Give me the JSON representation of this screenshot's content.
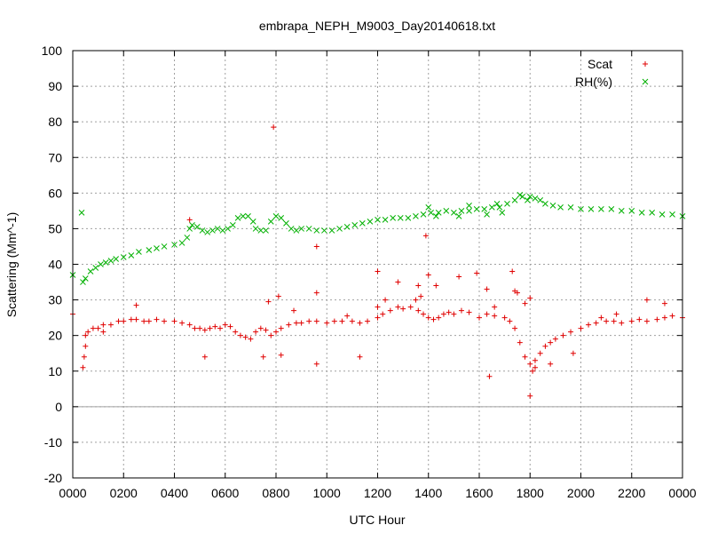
{
  "chart_data": {
    "type": "scatter",
    "title": "embrapa_NEPH_M9003_Day20140618.txt",
    "xlabel": "UTC Hour",
    "ylabel": "Scattering (Mm^-1)",
    "xlim": [
      0,
      24
    ],
    "ylim": [
      -20,
      100
    ],
    "grid": true,
    "zero_line": true,
    "legend_position": "top-right",
    "x_ticks": [
      {
        "value": 0,
        "label": "0000"
      },
      {
        "value": 2,
        "label": "0200"
      },
      {
        "value": 4,
        "label": "0400"
      },
      {
        "value": 6,
        "label": "0600"
      },
      {
        "value": 8,
        "label": "0800"
      },
      {
        "value": 10,
        "label": "1000"
      },
      {
        "value": 12,
        "label": "1200"
      },
      {
        "value": 14,
        "label": "1400"
      },
      {
        "value": 16,
        "label": "1600"
      },
      {
        "value": 18,
        "label": "1800"
      },
      {
        "value": 20,
        "label": "2000"
      },
      {
        "value": 22,
        "label": "2200"
      },
      {
        "value": 24,
        "label": "0000"
      }
    ],
    "y_ticks": [
      {
        "value": -20,
        "label": "-20"
      },
      {
        "value": -10,
        "label": "-10"
      },
      {
        "value": 0,
        "label": "0"
      },
      {
        "value": 10,
        "label": "10"
      },
      {
        "value": 20,
        "label": "20"
      },
      {
        "value": 30,
        "label": "30"
      },
      {
        "value": 40,
        "label": "40"
      },
      {
        "value": 50,
        "label": "50"
      },
      {
        "value": 60,
        "label": "60"
      },
      {
        "value": 70,
        "label": "70"
      },
      {
        "value": 80,
        "label": "80"
      },
      {
        "value": 90,
        "label": "90"
      },
      {
        "value": 100,
        "label": "100"
      }
    ],
    "series": [
      {
        "name": "Scat",
        "marker": "plus",
        "color": "#e00000",
        "points": [
          [
            0.0,
            26
          ],
          [
            0.4,
            11
          ],
          [
            0.45,
            14
          ],
          [
            0.5,
            20
          ],
          [
            0.6,
            21
          ],
          [
            0.8,
            22
          ],
          [
            1.0,
            22
          ],
          [
            1.2,
            23
          ],
          [
            1.5,
            23
          ],
          [
            1.8,
            24
          ],
          [
            2.0,
            24
          ],
          [
            2.3,
            24.5
          ],
          [
            2.5,
            24.5
          ],
          [
            2.8,
            24
          ],
          [
            3.0,
            24
          ],
          [
            3.3,
            24.5
          ],
          [
            3.6,
            24
          ],
          [
            4.0,
            24
          ],
          [
            4.3,
            23.5
          ],
          [
            4.6,
            23
          ],
          [
            4.8,
            22
          ],
          [
            5.0,
            22
          ],
          [
            5.2,
            21.5
          ],
          [
            5.4,
            22
          ],
          [
            5.6,
            22.5
          ],
          [
            5.8,
            22
          ],
          [
            6.0,
            23
          ],
          [
            6.2,
            22.5
          ],
          [
            6.4,
            21
          ],
          [
            6.6,
            20
          ],
          [
            6.8,
            19.5
          ],
          [
            7.0,
            19
          ],
          [
            7.2,
            21
          ],
          [
            7.4,
            22
          ],
          [
            7.6,
            21.5
          ],
          [
            7.8,
            20
          ],
          [
            8.0,
            21
          ],
          [
            8.2,
            22
          ],
          [
            8.5,
            23
          ],
          [
            8.8,
            23.5
          ],
          [
            9.0,
            23.5
          ],
          [
            9.3,
            24
          ],
          [
            9.6,
            24
          ],
          [
            10.0,
            23.5
          ],
          [
            10.3,
            24
          ],
          [
            10.6,
            24
          ],
          [
            11.0,
            24
          ],
          [
            11.3,
            23.5
          ],
          [
            11.6,
            24
          ],
          [
            12.0,
            25
          ],
          [
            12.2,
            26
          ],
          [
            12.5,
            27
          ],
          [
            12.8,
            28
          ],
          [
            13.0,
            27.5
          ],
          [
            13.3,
            28
          ],
          [
            13.6,
            27
          ],
          [
            13.8,
            26
          ],
          [
            14.0,
            25
          ],
          [
            14.2,
            24.5
          ],
          [
            14.4,
            25
          ],
          [
            14.6,
            26
          ],
          [
            14.8,
            26.5
          ],
          [
            15.0,
            26
          ],
          [
            15.3,
            27
          ],
          [
            15.6,
            26.5
          ],
          [
            16.0,
            25
          ],
          [
            16.3,
            26
          ],
          [
            16.6,
            25.5
          ],
          [
            17.0,
            25
          ],
          [
            17.2,
            24
          ],
          [
            17.4,
            22
          ],
          [
            17.6,
            18
          ],
          [
            17.8,
            14
          ],
          [
            18.0,
            12
          ],
          [
            18.1,
            10
          ],
          [
            18.2,
            13
          ],
          [
            18.4,
            15
          ],
          [
            18.6,
            17
          ],
          [
            18.8,
            18
          ],
          [
            19.0,
            19
          ],
          [
            19.3,
            20
          ],
          [
            19.6,
            21
          ],
          [
            20.0,
            22
          ],
          [
            20.3,
            23
          ],
          [
            20.6,
            23.5
          ],
          [
            21.0,
            24
          ],
          [
            21.3,
            24
          ],
          [
            21.6,
            23.5
          ],
          [
            22.0,
            24
          ],
          [
            22.3,
            24.5
          ],
          [
            22.6,
            24
          ],
          [
            23.0,
            24.5
          ],
          [
            23.3,
            25
          ],
          [
            23.6,
            25.5
          ],
          [
            24.0,
            25
          ],
          [
            7.9,
            78.5
          ],
          [
            9.6,
            45
          ],
          [
            9.6,
            32
          ],
          [
            9.6,
            12
          ],
          [
            13.9,
            48
          ],
          [
            13.6,
            34
          ],
          [
            14.0,
            37
          ],
          [
            12.0,
            38
          ],
          [
            12.0,
            28
          ],
          [
            11.3,
            14
          ],
          [
            12.3,
            30
          ],
          [
            12.8,
            35
          ],
          [
            13.5,
            30
          ],
          [
            13.7,
            31
          ],
          [
            14.3,
            34
          ],
          [
            15.2,
            36.5
          ],
          [
            15.9,
            37.5
          ],
          [
            16.3,
            33
          ],
          [
            16.4,
            8.5
          ],
          [
            16.6,
            28
          ],
          [
            17.3,
            38
          ],
          [
            17.4,
            32.5
          ],
          [
            17.5,
            32
          ],
          [
            17.8,
            29
          ],
          [
            18.0,
            3
          ],
          [
            18.0,
            30.5
          ],
          [
            18.2,
            11
          ],
          [
            18.8,
            12
          ],
          [
            19.7,
            15
          ],
          [
            20.8,
            25
          ],
          [
            21.4,
            26
          ],
          [
            22.6,
            30
          ],
          [
            23.3,
            29
          ],
          [
            4.6,
            52.5
          ],
          [
            5.2,
            14
          ],
          [
            7.5,
            14
          ],
          [
            8.2,
            14.5
          ],
          [
            7.7,
            29.5
          ],
          [
            8.1,
            31
          ],
          [
            8.7,
            27
          ],
          [
            10.8,
            25.5
          ],
          [
            2.5,
            28.5
          ],
          [
            1.2,
            21
          ],
          [
            0.5,
            17
          ]
        ]
      },
      {
        "name": "RH(%)",
        "marker": "cross",
        "color": "#00b000",
        "points": [
          [
            0.0,
            37
          ],
          [
            0.35,
            54.5
          ],
          [
            0.4,
            35
          ],
          [
            0.5,
            36
          ],
          [
            0.7,
            38
          ],
          [
            0.9,
            39
          ],
          [
            1.1,
            40
          ],
          [
            1.3,
            40.5
          ],
          [
            1.5,
            41
          ],
          [
            1.7,
            41.5
          ],
          [
            2.0,
            42
          ],
          [
            2.3,
            42.5
          ],
          [
            2.6,
            43.5
          ],
          [
            3.0,
            44
          ],
          [
            3.3,
            44.5
          ],
          [
            3.6,
            45
          ],
          [
            4.0,
            45.5
          ],
          [
            4.3,
            46
          ],
          [
            4.5,
            47.5
          ],
          [
            4.6,
            50
          ],
          [
            4.7,
            51
          ],
          [
            4.9,
            50.5
          ],
          [
            5.1,
            49.5
          ],
          [
            5.3,
            49
          ],
          [
            5.5,
            49.5
          ],
          [
            5.7,
            50
          ],
          [
            5.9,
            49.5
          ],
          [
            6.1,
            50
          ],
          [
            6.3,
            51
          ],
          [
            6.5,
            53
          ],
          [
            6.7,
            53.5
          ],
          [
            6.9,
            53.5
          ],
          [
            7.1,
            52
          ],
          [
            7.2,
            50
          ],
          [
            7.4,
            49.5
          ],
          [
            7.6,
            49.5
          ],
          [
            7.8,
            52
          ],
          [
            8.0,
            53.5
          ],
          [
            8.2,
            53
          ],
          [
            8.4,
            51.5
          ],
          [
            8.6,
            50
          ],
          [
            8.8,
            49.5
          ],
          [
            9.0,
            50
          ],
          [
            9.3,
            50
          ],
          [
            9.6,
            49.5
          ],
          [
            9.9,
            49.5
          ],
          [
            10.2,
            49.5
          ],
          [
            10.5,
            50
          ],
          [
            10.8,
            50.5
          ],
          [
            11.1,
            51
          ],
          [
            11.4,
            51.5
          ],
          [
            11.7,
            52
          ],
          [
            12.0,
            52.5
          ],
          [
            12.3,
            52.5
          ],
          [
            12.6,
            53
          ],
          [
            12.9,
            53
          ],
          [
            13.2,
            53
          ],
          [
            13.5,
            53.5
          ],
          [
            13.8,
            54
          ],
          [
            14.1,
            54.5
          ],
          [
            14.4,
            54.5
          ],
          [
            14.7,
            55
          ],
          [
            15.0,
            54.5
          ],
          [
            15.3,
            55
          ],
          [
            15.6,
            55
          ],
          [
            15.9,
            55.5
          ],
          [
            16.2,
            55.5
          ],
          [
            16.5,
            56
          ],
          [
            16.8,
            56
          ],
          [
            17.1,
            57
          ],
          [
            17.4,
            58
          ],
          [
            17.7,
            59
          ],
          [
            18.0,
            59
          ],
          [
            18.2,
            58.5
          ],
          [
            18.4,
            58
          ],
          [
            18.6,
            57
          ],
          [
            18.9,
            56.5
          ],
          [
            19.2,
            56
          ],
          [
            19.6,
            56
          ],
          [
            20.0,
            55.5
          ],
          [
            20.4,
            55.5
          ],
          [
            20.8,
            55.5
          ],
          [
            21.2,
            55.5
          ],
          [
            21.6,
            55
          ],
          [
            22.0,
            55
          ],
          [
            22.4,
            54.5
          ],
          [
            22.8,
            54.5
          ],
          [
            23.2,
            54
          ],
          [
            23.6,
            54
          ],
          [
            24.0,
            53.5
          ],
          [
            14.0,
            56
          ],
          [
            14.3,
            53.5
          ],
          [
            15.2,
            53.5
          ],
          [
            15.6,
            56.5
          ],
          [
            16.3,
            54
          ],
          [
            16.7,
            57
          ],
          [
            16.9,
            54.5
          ],
          [
            17.6,
            59.5
          ],
          [
            17.9,
            58
          ]
        ]
      }
    ]
  }
}
